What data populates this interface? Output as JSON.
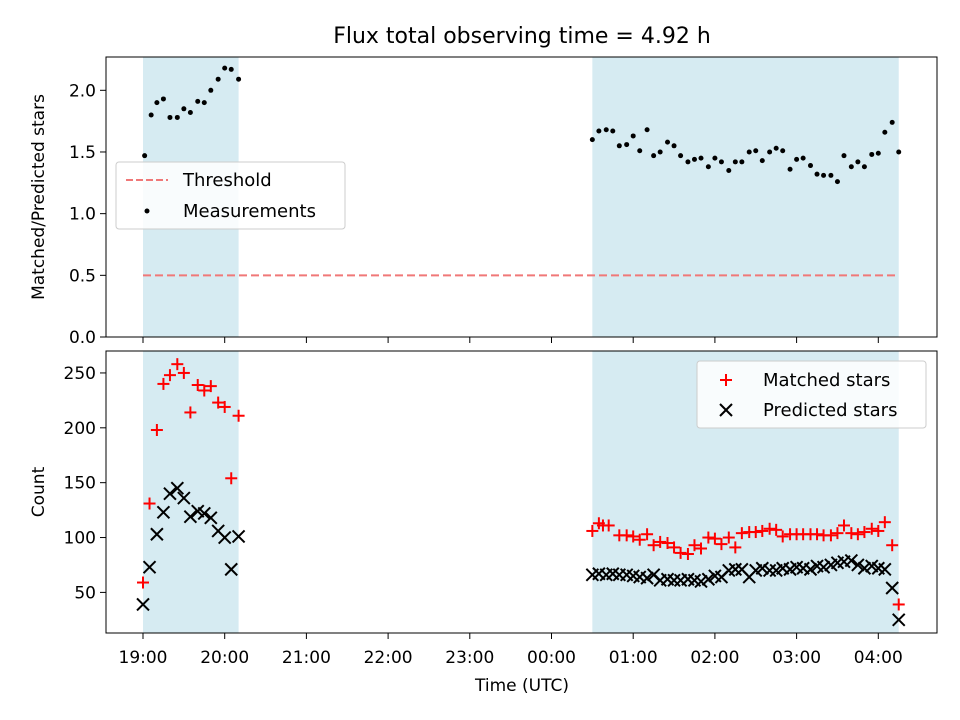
{
  "title": "Flux total observing time = 4.92 h",
  "xlabel": "Time (UTC)",
  "x_ticks": [
    "19:00",
    "20:00",
    "21:00",
    "22:00",
    "23:00",
    "00:00",
    "01:00",
    "02:00",
    "03:00",
    "04:00"
  ],
  "colors": {
    "band": "#add8e6",
    "threshold": "#f07878",
    "measurements": "#000000",
    "matched": "#ff0000",
    "predicted": "#000000"
  },
  "chart_data": [
    {
      "type": "scatter",
      "ylabel": "Matched/Predicted stars",
      "ylim": [
        0,
        2.27
      ],
      "y_ticks": [
        "0.0",
        "0.5",
        "1.0",
        "1.5",
        "2.0"
      ],
      "x_unit": "hours since 19:00 UTC",
      "shaded_intervals": [
        [
          0.0,
          1.17
        ],
        [
          5.5,
          9.25
        ]
      ],
      "legend": {
        "placement": "center-left",
        "entries": [
          "Threshold",
          "Measurements"
        ]
      },
      "series": [
        {
          "name": "Threshold",
          "kind": "line",
          "style": "dashed",
          "y": 0.5,
          "x_range": [
            0.0,
            9.25
          ]
        },
        {
          "name": "Measurements",
          "kind": "scatter",
          "x": [
            0.02,
            0.1,
            0.17,
            0.25,
            0.33,
            0.42,
            0.5,
            0.58,
            0.67,
            0.75,
            0.83,
            0.92,
            1.0,
            1.08,
            1.17,
            5.5,
            5.58,
            5.67,
            5.75,
            5.83,
            5.92,
            6.0,
            6.08,
            6.17,
            6.25,
            6.33,
            6.42,
            6.5,
            6.58,
            6.67,
            6.75,
            6.83,
            6.92,
            7.0,
            7.08,
            7.17,
            7.25,
            7.33,
            7.42,
            7.5,
            7.58,
            7.67,
            7.75,
            7.83,
            7.92,
            8.0,
            8.08,
            8.17,
            8.25,
            8.33,
            8.42,
            8.5,
            8.58,
            8.67,
            8.75,
            8.83,
            8.92,
            9.0,
            9.08,
            9.17,
            9.25
          ],
          "y": [
            1.47,
            1.8,
            1.9,
            1.93,
            1.78,
            1.78,
            1.85,
            1.82,
            1.91,
            1.9,
            2.0,
            2.09,
            2.18,
            2.17,
            2.09,
            1.6,
            1.67,
            1.68,
            1.67,
            1.55,
            1.56,
            1.63,
            1.51,
            1.68,
            1.47,
            1.5,
            1.58,
            1.55,
            1.47,
            1.42,
            1.44,
            1.45,
            1.38,
            1.45,
            1.42,
            1.35,
            1.42,
            1.42,
            1.5,
            1.51,
            1.43,
            1.5,
            1.53,
            1.51,
            1.36,
            1.44,
            1.45,
            1.39,
            1.32,
            1.31,
            1.31,
            1.26,
            1.47,
            1.38,
            1.42,
            1.38,
            1.48,
            1.49,
            1.66,
            1.74,
            1.5
          ]
        }
      ]
    },
    {
      "type": "scatter",
      "ylabel": "Count",
      "ylim": [
        13,
        270
      ],
      "y_ticks": [
        "50",
        "100",
        "150",
        "200",
        "250"
      ],
      "x_unit": "hours since 19:00 UTC",
      "shaded_intervals": [
        [
          0.0,
          1.17
        ],
        [
          5.5,
          9.25
        ]
      ],
      "legend": {
        "placement": "top-right",
        "entries": [
          "Matched stars",
          "Predicted stars"
        ]
      },
      "series": [
        {
          "name": "Matched stars",
          "marker": "+",
          "x": [
            0.0,
            0.08,
            0.17,
            0.25,
            0.33,
            0.42,
            0.5,
            0.58,
            0.67,
            0.75,
            0.83,
            0.92,
            1.0,
            1.08,
            1.17,
            5.5,
            5.58,
            5.63,
            5.7,
            5.83,
            5.92,
            6.0,
            6.08,
            6.17,
            6.25,
            6.33,
            6.42,
            6.5,
            6.58,
            6.67,
            6.75,
            6.83,
            6.92,
            7.0,
            7.08,
            7.17,
            7.25,
            7.33,
            7.42,
            7.5,
            7.58,
            7.67,
            7.75,
            7.83,
            7.92,
            8.0,
            8.08,
            8.17,
            8.25,
            8.33,
            8.42,
            8.5,
            8.58,
            8.67,
            8.75,
            8.83,
            8.92,
            9.0,
            9.08,
            9.17,
            9.25
          ],
          "y": [
            59,
            131,
            198,
            240,
            248,
            258,
            250,
            214,
            239,
            234,
            238,
            223,
            219,
            154,
            211,
            106,
            113,
            111,
            111,
            102,
            102,
            101,
            98,
            103,
            93,
            96,
            95,
            91,
            86,
            85,
            93,
            90,
            100,
            99,
            94,
            100,
            91,
            104,
            105,
            105,
            106,
            108,
            107,
            101,
            103,
            103,
            103,
            103,
            103,
            102,
            102,
            104,
            111,
            104,
            103,
            105,
            108,
            106,
            114,
            93,
            39
          ]
        },
        {
          "name": "Predicted stars",
          "marker": "x",
          "x": [
            0.0,
            0.08,
            0.17,
            0.25,
            0.33,
            0.42,
            0.5,
            0.58,
            0.67,
            0.75,
            0.83,
            0.92,
            1.0,
            1.08,
            1.17,
            5.5,
            5.58,
            5.67,
            5.75,
            5.83,
            5.92,
            6.0,
            6.08,
            6.17,
            6.25,
            6.33,
            6.42,
            6.5,
            6.58,
            6.67,
            6.75,
            6.83,
            6.92,
            7.0,
            7.08,
            7.17,
            7.25,
            7.33,
            7.42,
            7.5,
            7.58,
            7.67,
            7.75,
            7.83,
            7.92,
            8.0,
            8.08,
            8.17,
            8.25,
            8.33,
            8.42,
            8.5,
            8.58,
            8.67,
            8.75,
            8.83,
            8.92,
            9.0,
            9.08,
            9.17,
            9.25
          ],
          "y": [
            39,
            73,
            103,
            123,
            140,
            145,
            136,
            119,
            124,
            122,
            118,
            106,
            100,
            71,
            101,
            66,
            67,
            66,
            67,
            66,
            66,
            65,
            64,
            63,
            66,
            61,
            62,
            61,
            61,
            62,
            61,
            60,
            62,
            65,
            64,
            70,
            71,
            71,
            64,
            70,
            72,
            70,
            70,
            72,
            71,
            73,
            72,
            71,
            74,
            73,
            75,
            77,
            78,
            79,
            75,
            72,
            74,
            72,
            71,
            54,
            25
          ]
        }
      ]
    }
  ]
}
